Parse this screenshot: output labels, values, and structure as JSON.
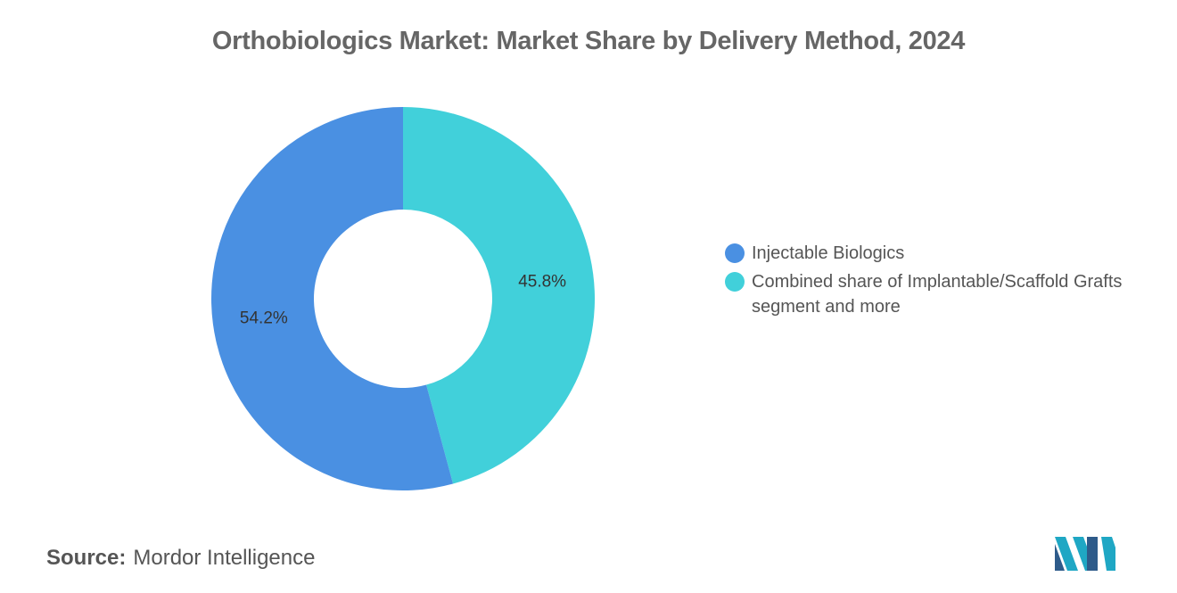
{
  "title": "Orthobiologics Market: Market Share by Delivery Method, 2024",
  "chart_data": {
    "type": "pie",
    "title": "Orthobiologics Market: Market Share by Delivery Method, 2024",
    "donut": true,
    "series": [
      {
        "name": "Injectable Biologics",
        "value": 54.2,
        "label": "54.2%",
        "color": "#4a90e2"
      },
      {
        "name": "Combined share of Implantable/Scaffold Grafts segment and more",
        "value": 45.8,
        "label": "45.8%",
        "color": "#41d0da"
      }
    ],
    "legend_position": "right"
  },
  "source": {
    "label": "Source:",
    "value": "Mordor Intelligence"
  },
  "logo": {
    "icon": "mordor-intelligence-logo",
    "colors": [
      "#1fa7c4",
      "#2e5b8a"
    ]
  }
}
